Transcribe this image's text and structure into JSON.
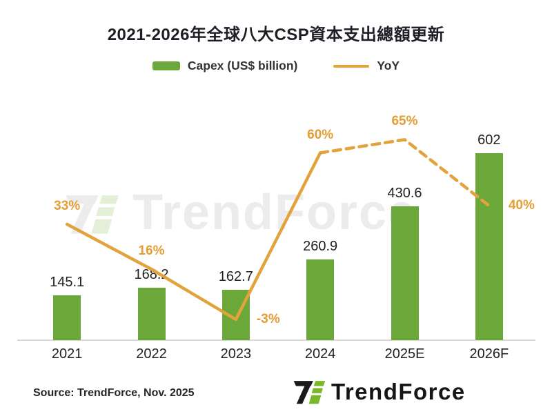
{
  "title": "2021-2026年全球八大CSP資本支出總額更新",
  "legend": {
    "capex_label": "Capex (US$ billion)",
    "yoy_label": "YoY"
  },
  "source": "Source: TrendForce, Nov. 2025",
  "brand": {
    "logo_text": "TrendForce",
    "watermark_text": "TrendForce"
  },
  "colors": {
    "bar_green": "#6BA839",
    "line_orange": "#E2A33C",
    "yoy_label_orange": "#E49E33",
    "value_label_dark": "#212121",
    "axis_gray": "#D9D9D9",
    "logo_green": "#7AB829",
    "logo_black": "#1A1A1A",
    "watermark_gray": "#ECECEC",
    "watermark_green": "#E3EFD6"
  },
  "chart_data": {
    "type": "bar",
    "subtype": "bar+line combo",
    "title": "2021-2026年全球八大CSP資本支出總額更新",
    "categories": [
      "2021",
      "2022",
      "2023",
      "2024",
      "2025E",
      "2026F"
    ],
    "series": [
      {
        "name": "Capex (US$ billion)",
        "type": "bar",
        "values": [
          145.1,
          168.2,
          162.7,
          260.9,
          430.6,
          602
        ],
        "labels": [
          "145.1",
          "168.2",
          "162.7",
          "260.9",
          "430.6",
          "602"
        ]
      },
      {
        "name": "YoY",
        "type": "line",
        "unit": "%",
        "values": [
          33,
          16,
          -3,
          60,
          65,
          40
        ],
        "labels": [
          "33%",
          "16%",
          "-3%",
          "60%",
          "65%",
          "40%"
        ],
        "solid_until_index": 3,
        "dashed_after": true,
        "label_positions": [
          "above",
          "above",
          "right",
          "above",
          "above",
          "right"
        ]
      }
    ],
    "xlabel": "",
    "ylabel": "",
    "value_axis_visible": false,
    "grid": false,
    "legend_position": "top"
  }
}
